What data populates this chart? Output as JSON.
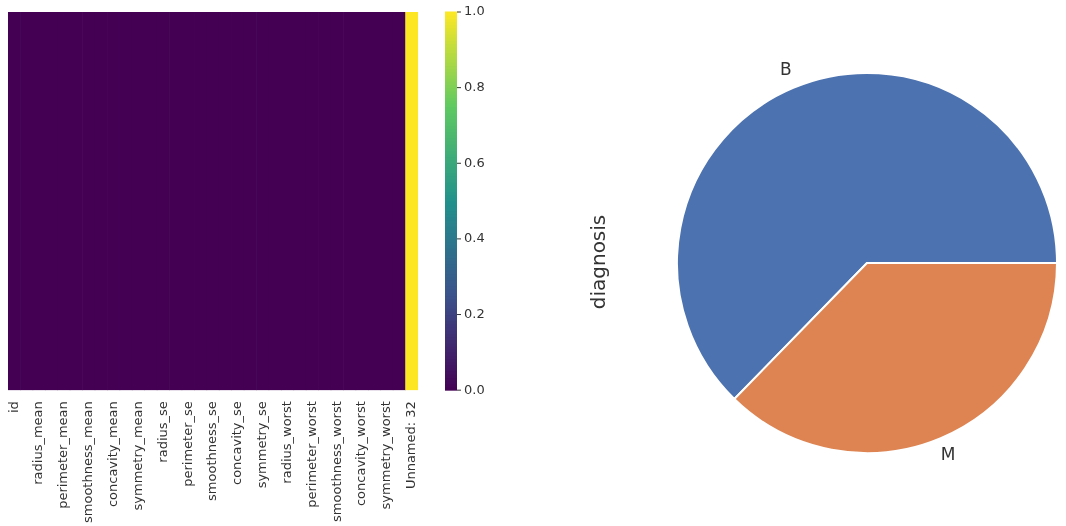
{
  "chart_data": [
    {
      "type": "heatmap",
      "categories": [
        "id",
        null,
        "radius_mean",
        null,
        "perimeter_mean",
        null,
        "smoothness_mean",
        null,
        "concavity_mean",
        null,
        "symmetry_mean",
        null,
        "radius_se",
        null,
        "perimeter_se",
        null,
        "smoothness_se",
        null,
        "concavity_se",
        null,
        "symmetry_se",
        null,
        "radius_worst",
        null,
        "perimeter_worst",
        null,
        "smoothness_worst",
        null,
        "concavity_worst",
        null,
        "symmetry_worst",
        null,
        "Unnamed: 32"
      ],
      "y_categories": [
        null
      ],
      "cells": [
        [
          0,
          0,
          0,
          0,
          0,
          0,
          0,
          0,
          0,
          0,
          0,
          0,
          0,
          0,
          0,
          0,
          0,
          0,
          0,
          0,
          0,
          0,
          0,
          0,
          0,
          0,
          0,
          0,
          0,
          0,
          0,
          0,
          1
        ]
      ],
      "clim": [
        0,
        1
      ],
      "cticks": [
        {
          "value": 0,
          "label": "0.0"
        },
        {
          "value": 0.2,
          "label": "0.2"
        },
        {
          "value": 0.4,
          "label": "0.4"
        },
        {
          "value": 0.6,
          "label": "0.6"
        },
        {
          "value": 0.8,
          "label": "0.8"
        },
        {
          "value": 1,
          "label": "1.0"
        }
      ]
    },
    {
      "type": "pie",
      "ylabel": "diagnosis",
      "categories": [
        "B",
        "M"
      ],
      "values": [
        62.7,
        37.3
      ],
      "colors": [
        "#4c72b0",
        "#dd8452"
      ]
    }
  ]
}
